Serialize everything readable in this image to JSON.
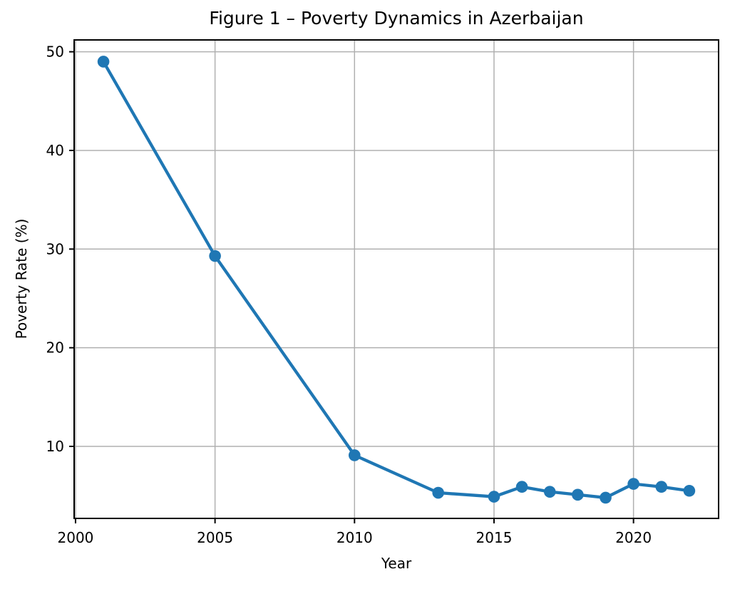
{
  "chart_data": {
    "type": "line",
    "title": "Figure 1 – Poverty Dynamics in Azerbaijan",
    "xlabel": "Year",
    "ylabel": "Poverty Rate (%)",
    "series": [
      {
        "name": "Poverty Rate",
        "x": [
          2001,
          2005,
          2010,
          2013,
          2015,
          2016,
          2017,
          2018,
          2019,
          2020,
          2021,
          2022
        ],
        "y": [
          49.0,
          29.3,
          9.1,
          5.3,
          4.9,
          5.9,
          5.4,
          5.1,
          4.8,
          6.2,
          5.9,
          5.5
        ]
      }
    ],
    "xticks": [
      2000,
      2005,
      2010,
      2015,
      2020
    ],
    "yticks": [
      10,
      20,
      30,
      40,
      50
    ],
    "xlim": [
      1999.95,
      2023.05
    ],
    "ylim": [
      2.7,
      51.2
    ],
    "grid": true,
    "legend": "none",
    "marker": "circle",
    "colors": {
      "line": "#1f77b4",
      "marker": "#1f77b4",
      "grid": "#b0b0b0",
      "axis": "#000000",
      "background": "#ffffff"
    }
  }
}
